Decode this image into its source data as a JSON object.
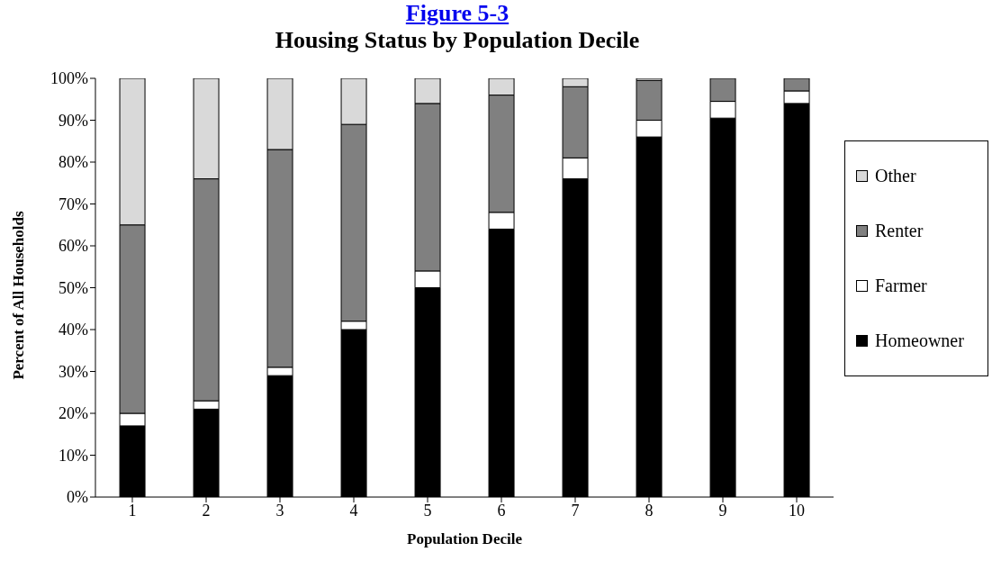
{
  "chart_data": {
    "type": "bar",
    "title": "Figure 5-3",
    "subtitle": "Housing Status by Population Decile",
    "xlabel": "Population Decile",
    "ylabel": "Percent of All Households",
    "categories": [
      "1",
      "2",
      "3",
      "4",
      "5",
      "6",
      "7",
      "8",
      "9",
      "10"
    ],
    "stacked": true,
    "series": [
      {
        "name": "Homeowner",
        "color": "#000000",
        "values": [
          17,
          21,
          29,
          40,
          50,
          64,
          76,
          86,
          90.5,
          94
        ]
      },
      {
        "name": "Farmer",
        "color": "#ffffff",
        "values": [
          3,
          2,
          2,
          2,
          4,
          4,
          5,
          4,
          4,
          3
        ]
      },
      {
        "name": "Renter",
        "color": "#808080",
        "values": [
          45,
          53,
          52,
          47,
          40,
          28,
          17,
          9.5,
          5.5,
          3
        ]
      },
      {
        "name": "Other",
        "color": "#d9d9d9",
        "values": [
          35,
          24,
          17,
          11,
          6,
          4,
          2,
          0.5,
          0,
          0
        ]
      }
    ],
    "ylim": [
      0,
      100
    ],
    "yticks": [
      {
        "value": 0,
        "label": "0%"
      },
      {
        "value": 10,
        "label": "10%"
      },
      {
        "value": 20,
        "label": "20%"
      },
      {
        "value": 30,
        "label": "30%"
      },
      {
        "value": 40,
        "label": "40%"
      },
      {
        "value": 50,
        "label": "50%"
      },
      {
        "value": 60,
        "label": "60%"
      },
      {
        "value": 70,
        "label": "70%"
      },
      {
        "value": 80,
        "label": "80%"
      },
      {
        "value": 90,
        "label": "90%"
      },
      {
        "value": 100,
        "label": "100%"
      }
    ],
    "grid": false,
    "legend": "right"
  }
}
